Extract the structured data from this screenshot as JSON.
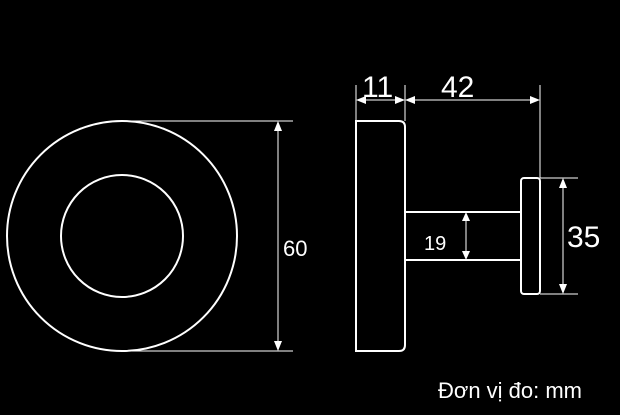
{
  "drawing": {
    "dimensions": {
      "diameter_base": "60",
      "base_thickness": "11",
      "projection": "42",
      "stem_diameter": "19",
      "cap_diameter": "35"
    },
    "unit_note": "Đơn vị đo: mm",
    "colors": {
      "background": "#000000",
      "lines": "#ffffff"
    }
  }
}
